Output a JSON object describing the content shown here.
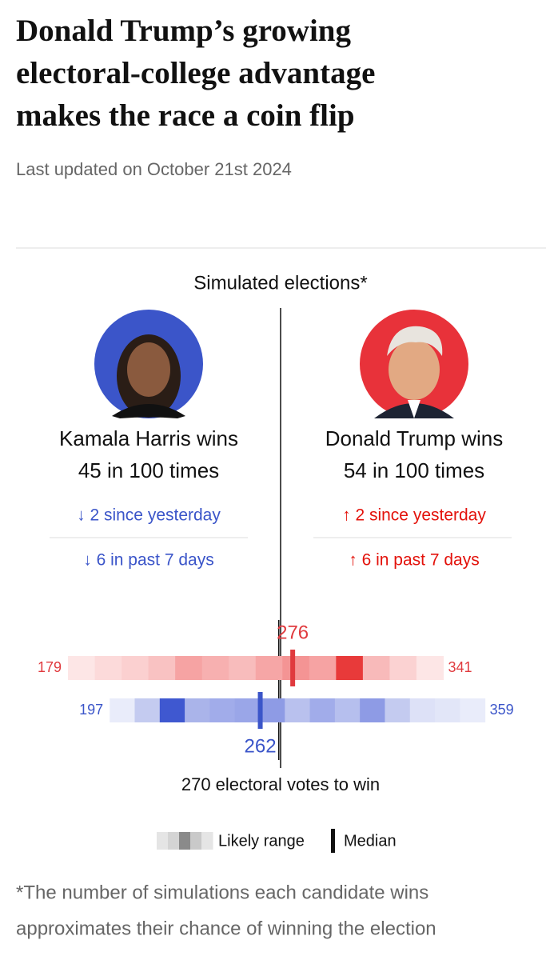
{
  "header": {
    "title_lines": [
      "Donald Trump’s growing",
      "electoral-college advantage",
      "makes the race a coin flip"
    ],
    "updated": "Last updated on October 21st 2024"
  },
  "section_title": "Simulated elections*",
  "candidates": [
    {
      "name_line": "Kamala Harris wins",
      "odds_line": "45 in 100 times",
      "change_day": "↓ 2 since yesterday",
      "change_week": "↓ 6 in past 7 days",
      "color": "#3b55c9"
    },
    {
      "name_line": "Donald Trump wins",
      "odds_line": "54 in 100 times",
      "change_day": "↑ 2 since yesterday",
      "change_week": "↑ 6 in past 7 days",
      "color": "#e3120b"
    }
  ],
  "chart_data": {
    "type": "range-strip",
    "xlim": [
      160,
      375
    ],
    "threshold": 270,
    "threshold_label": "270 electoral votes to win",
    "rows": [
      {
        "low": 179,
        "high": 341,
        "median": 276,
        "color": "#e03a3e",
        "cell_colors": [
          "#fde6e6",
          "#fcdada",
          "#fbd0d0",
          "#f9c2c2",
          "#f6a3a3",
          "#f7b0b0",
          "#f8bcbc",
          "#f6a6a6",
          "#f49494",
          "#f6a3a3",
          "#e83a3a",
          "#f8baba",
          "#fbd2d2",
          "#fde6e6"
        ]
      },
      {
        "low": 197,
        "high": 359,
        "median": 262,
        "color": "#3b55c9",
        "cell_colors": [
          "#e9ecfa",
          "#c4cbf0",
          "#3f58d0",
          "#aab4ea",
          "#a1acea",
          "#9aa6e8",
          "#8e9be5",
          "#b9c1ee",
          "#a1acea",
          "#b6bfee",
          "#8e9be5",
          "#c4cbf0",
          "#dde1f7",
          "#e2e6f8",
          "#e9ecfa"
        ]
      }
    ],
    "legend": {
      "range": "Likely range",
      "median": "Median"
    }
  },
  "footnote_lines": [
    "*The number of simulations each candidate wins",
    "approximates their chance of winning the election"
  ]
}
